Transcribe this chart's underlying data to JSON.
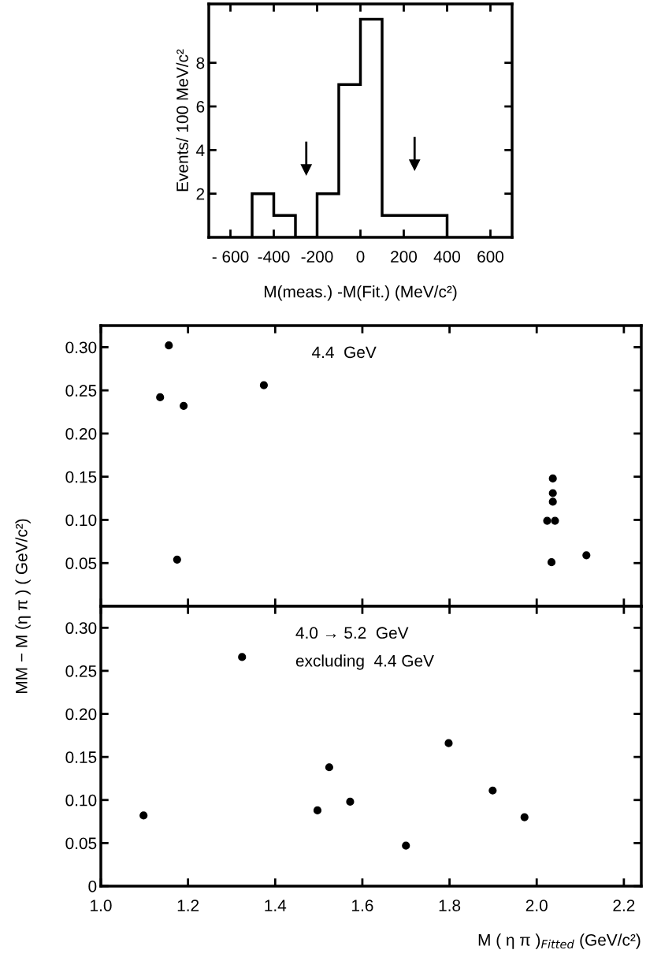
{
  "chart_data": [
    {
      "type": "histogram",
      "xlabel": "M(meas.) -M(Fit.) (MeV/c²)",
      "ylabel": "Events/ 100 MeV/c²",
      "color": "#000000",
      "bins": [
        -500,
        -400,
        -300,
        -200,
        -100,
        0,
        100,
        200,
        300,
        400
      ],
      "values": [
        2,
        1,
        0,
        2,
        7,
        10,
        1,
        1,
        1
      ],
      "xlim": [
        -700,
        700
      ],
      "xticks": [
        {
          "value": -600,
          "label": "- 600"
        },
        -400,
        -200,
        0,
        200,
        400,
        600
      ],
      "ylim": [
        0,
        10.7
      ],
      "yticks": [
        2,
        4,
        6,
        8
      ],
      "ref_lines": [
        {
          "axis": "x",
          "value": -250,
          "label": null
        },
        {
          "axis": "x",
          "value": 250,
          "label": null
        }
      ],
      "grid": false,
      "legend": false
    },
    {
      "type": "scatter",
      "annotations": [
        "4.4  GeV"
      ],
      "marker": "circle",
      "tick_labels": "y",
      "series": [
        {
          "color": "#000000",
          "x": [
            1.136,
            1.156,
            1.19,
            1.374,
            2.037,
            2.037,
            2.037,
            2.024,
            2.042,
            1.175,
            2.034,
            2.114
          ],
          "values": [
            0.242,
            0.302,
            0.232,
            0.256,
            0.148,
            0.131,
            0.121,
            0.099,
            0.099,
            0.054,
            0.051,
            0.059
          ]
        }
      ],
      "xlim": [
        1.0,
        2.24
      ],
      "xticks": [
        1.0,
        1.2,
        1.4,
        1.6,
        1.8,
        2.0,
        2.2
      ],
      "ylim": [
        0,
        0.325
      ],
      "yticks": [
        {
          "value": 0.05,
          "label": "0.05"
        },
        {
          "value": 0.1,
          "label": "0.10"
        },
        {
          "value": 0.15,
          "label": "0.15"
        },
        {
          "value": 0.2,
          "label": "0.20"
        },
        {
          "value": 0.25,
          "label": "0.25"
        },
        {
          "value": 0.3,
          "label": "0.30"
        }
      ],
      "grid": false,
      "legend": false
    },
    {
      "type": "scatter",
      "annotations": [
        "4.0 → 5.2  GeV",
        "excluding  4.4 GeV"
      ],
      "marker": "circle",
      "xlabel": "M ( η π )$_{Fitted}$ (GeV/c²)",
      "ylabel": "MM − M (η π ) ( GeV/c²)",
      "series": [
        {
          "color": "#000000",
          "x": [
            1.098,
            1.324,
            1.497,
            1.524,
            1.572,
            1.7,
            1.798,
            1.899,
            1.972
          ],
          "values": [
            0.082,
            0.266,
            0.088,
            0.138,
            0.098,
            0.047,
            0.166,
            0.111,
            0.08
          ]
        }
      ],
      "xlim": [
        1.0,
        2.24
      ],
      "xticks": [
        {
          "value": 1.0,
          "label": "1.0"
        },
        1.2,
        1.4,
        1.6,
        1.8,
        {
          "value": 2.0,
          "label": "2.0"
        },
        2.2
      ],
      "ylim": [
        0,
        0.325
      ],
      "yticks": [
        {
          "value": 0,
          "label": "0"
        },
        {
          "value": 0.05,
          "label": "0.05"
        },
        {
          "value": 0.1,
          "label": "0.10"
        },
        {
          "value": 0.15,
          "label": "0.15"
        },
        {
          "value": 0.2,
          "label": "0.20"
        },
        {
          "value": 0.25,
          "label": "0.25"
        },
        {
          "value": 0.3,
          "label": "0.30"
        }
      ],
      "grid": false,
      "legend": false
    }
  ]
}
